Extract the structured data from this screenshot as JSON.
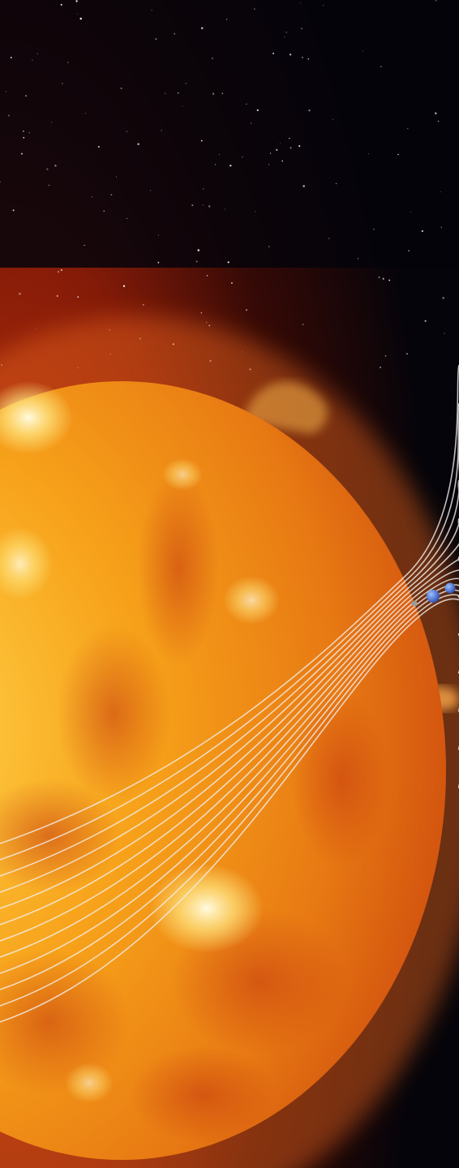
{
  "scene": {
    "subject": "sun-with-planet-orbits",
    "colors": {
      "space": "#05040a",
      "glow": "#8a1c08",
      "sun_core": "#ffd54a",
      "sun_mid": "#f7a21a",
      "sun_edge": "#d4560f",
      "orbit_line": "#f3ede8",
      "planet_blue": "#3f6fd8",
      "planet_grey": "#9a9a9a"
    }
  }
}
